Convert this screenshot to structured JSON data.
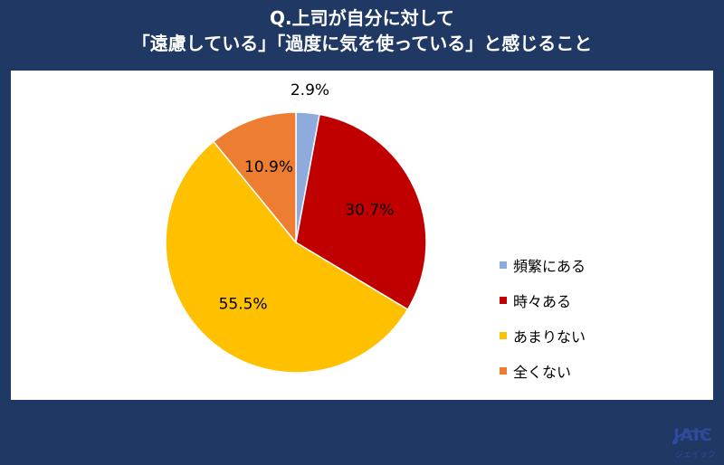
{
  "header": {
    "title_line1": "Q.上司が自分に対して",
    "title_line2": "「遠慮している」「過度に気を使っている」と感じること"
  },
  "chart_data": {
    "type": "pie",
    "categories": [
      "頻繁にある",
      "時々ある",
      "あまりない",
      "全くない"
    ],
    "values": [
      2.9,
      30.7,
      55.5,
      10.9
    ],
    "labels": [
      "2.9%",
      "30.7%",
      "55.5%",
      "10.9%"
    ],
    "colors": [
      "#8faadc",
      "#c00000",
      "#ffc000",
      "#ed7d31"
    ],
    "legend_position": "right"
  },
  "logo": {
    "text": "JAIC",
    "subtext": "ジェイック"
  }
}
